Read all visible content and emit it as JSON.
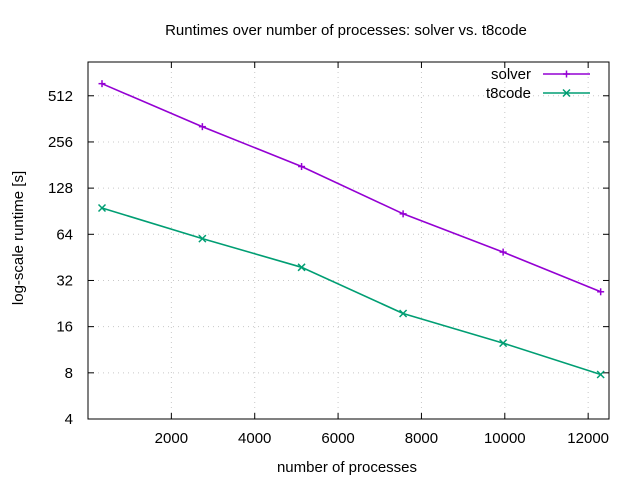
{
  "chart_data": {
    "type": "line",
    "title": "Runtimes over number of processes: solver vs. t8code",
    "xlabel": "number of processes",
    "ylabel": "log-scale runtime [s]",
    "xlim": [
      0,
      12500
    ],
    "ylim": [
      4,
      850
    ],
    "yscale": "log2",
    "xticks": [
      2000,
      4000,
      6000,
      8000,
      10000,
      12000
    ],
    "xtick_labels": [
      "2000",
      "4000",
      "6000",
      "8000",
      "10000",
      "12000"
    ],
    "yticks": [
      4,
      8,
      16,
      32,
      64,
      128,
      256,
      512
    ],
    "ytick_labels": [
      "4",
      "8",
      "16",
      "32",
      "64",
      "128",
      "256",
      "512"
    ],
    "grid": true,
    "legend_position": "top-right",
    "series": [
      {
        "name": "solver",
        "color": "#9400d3",
        "marker": "plus",
        "x": [
          336,
          2744,
          5124,
          7560,
          9960,
          12300
        ],
        "y": [
          614,
          322,
          177,
          87,
          49,
          27
        ]
      },
      {
        "name": "t8code",
        "color": "#009e73",
        "marker": "cross",
        "x": [
          336,
          2744,
          5124,
          7560,
          9960,
          12300
        ],
        "y": [
          95,
          60,
          39,
          19.5,
          12.5,
          7.8
        ]
      }
    ]
  }
}
